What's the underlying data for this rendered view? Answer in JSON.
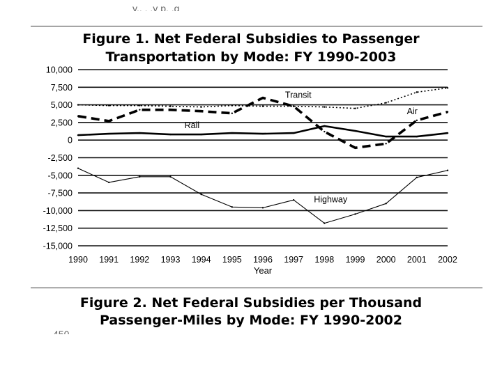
{
  "top_fragment": "y.. . .y p. .g",
  "bottom_fragment": "450",
  "figure2": {
    "title_line1": "Figure 2. Net Federal Subsidies per Thousand",
    "title_line2": "Passenger-Miles by Mode: FY 1990-2002"
  },
  "chart_data": {
    "type": "line",
    "title_line1": "Figure 1. Net Federal Subsidies to Passenger",
    "title_line2": "Transportation by Mode: FY 1990-2003",
    "xlabel": "Year",
    "ylabel": "",
    "x": [
      1990,
      1991,
      1992,
      1993,
      1994,
      1995,
      1996,
      1997,
      1998,
      1999,
      2000,
      2001,
      2002
    ],
    "x_tick_labels": [
      "1990",
      "1991",
      "1992",
      "1993",
      "1994",
      "1995",
      "1996",
      "1997",
      "1998",
      "1999",
      "2000",
      "2001",
      "2002"
    ],
    "ylim": [
      -15000,
      10000
    ],
    "y_ticks": [
      10000,
      7500,
      5000,
      2500,
      0,
      -2500,
      -5000,
      -7500,
      -10000,
      -12500,
      -15000
    ],
    "y_tick_labels": [
      "10,000",
      "7,500",
      "5,000",
      "2,500",
      "0",
      "-2,500",
      "-5,000",
      "-7,500",
      "-10,000",
      "-12,500",
      "-15,000"
    ],
    "grid": true,
    "series": [
      {
        "name": "Transit",
        "style": "dotted",
        "color": "#000000",
        "values": [
          5000,
          4900,
          4900,
          4800,
          4700,
          4900,
          4800,
          4800,
          4700,
          4500,
          5300,
          6800,
          7400
        ]
      },
      {
        "name": "Air",
        "style": "dashed",
        "color": "#000000",
        "values": [
          3400,
          2700,
          4300,
          4300,
          4100,
          3800,
          6000,
          4800,
          1200,
          -1100,
          -500,
          2800,
          4000
        ]
      },
      {
        "name": "Rail",
        "style": "solid-thick",
        "color": "#000000",
        "values": [
          700,
          900,
          1000,
          800,
          800,
          1000,
          900,
          1000,
          2000,
          1300,
          500,
          500,
          1000
        ]
      },
      {
        "name": "Highway",
        "style": "solid-thin",
        "color": "#000000",
        "values": [
          -4000,
          -6000,
          -5200,
          -5200,
          -7700,
          -9500,
          -9600,
          -8500,
          -11800,
          -10500,
          -9000,
          -5300,
          -4300
        ]
      }
    ],
    "annotations": [
      "Transit",
      "Air",
      "Rail",
      "Highway"
    ]
  }
}
